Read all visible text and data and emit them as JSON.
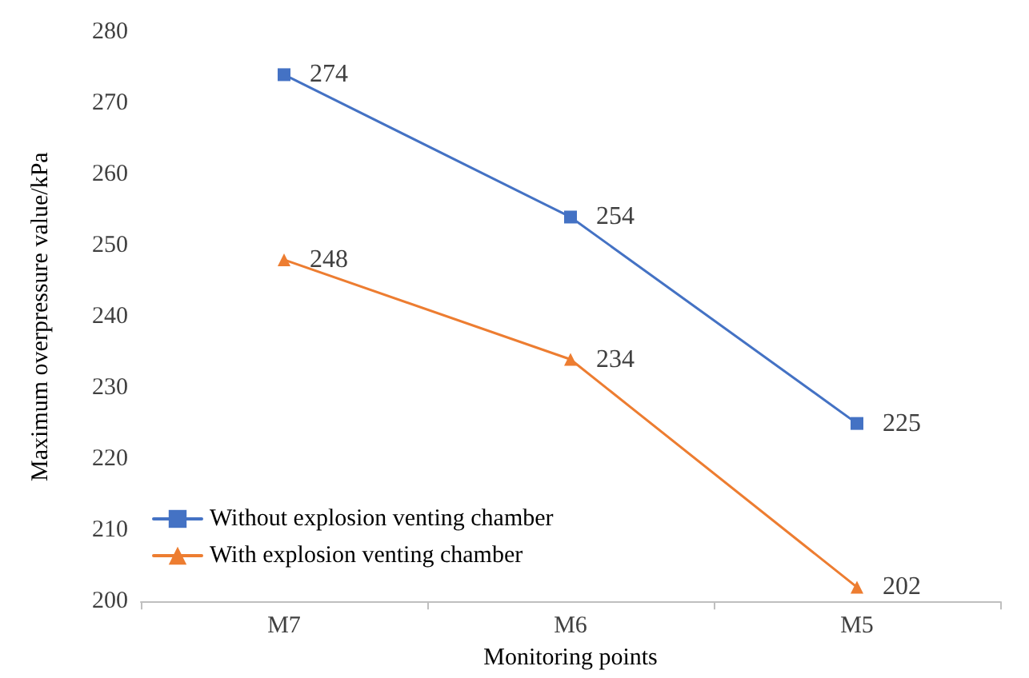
{
  "chart_data": {
    "type": "line",
    "xlabel": "Monitoring points",
    "ylabel": "Maximum overpressure value/kPa",
    "categories": [
      "M7",
      "M6",
      "M5"
    ],
    "series": [
      {
        "name": "Without explosion venting chamber",
        "color": "#4472c4",
        "marker": "square",
        "values": [
          274,
          254,
          225
        ]
      },
      {
        "name": "With explosion venting chamber",
        "color": "#ed7d31",
        "marker": "triangle",
        "values": [
          248,
          234,
          202
        ]
      }
    ],
    "ylim": [
      200,
      280
    ],
    "yticks": [
      200,
      210,
      220,
      230,
      240,
      250,
      260,
      270,
      280
    ],
    "grid": false,
    "legend": "bottom left",
    "data_labels": true,
    "line_style": "solid"
  }
}
